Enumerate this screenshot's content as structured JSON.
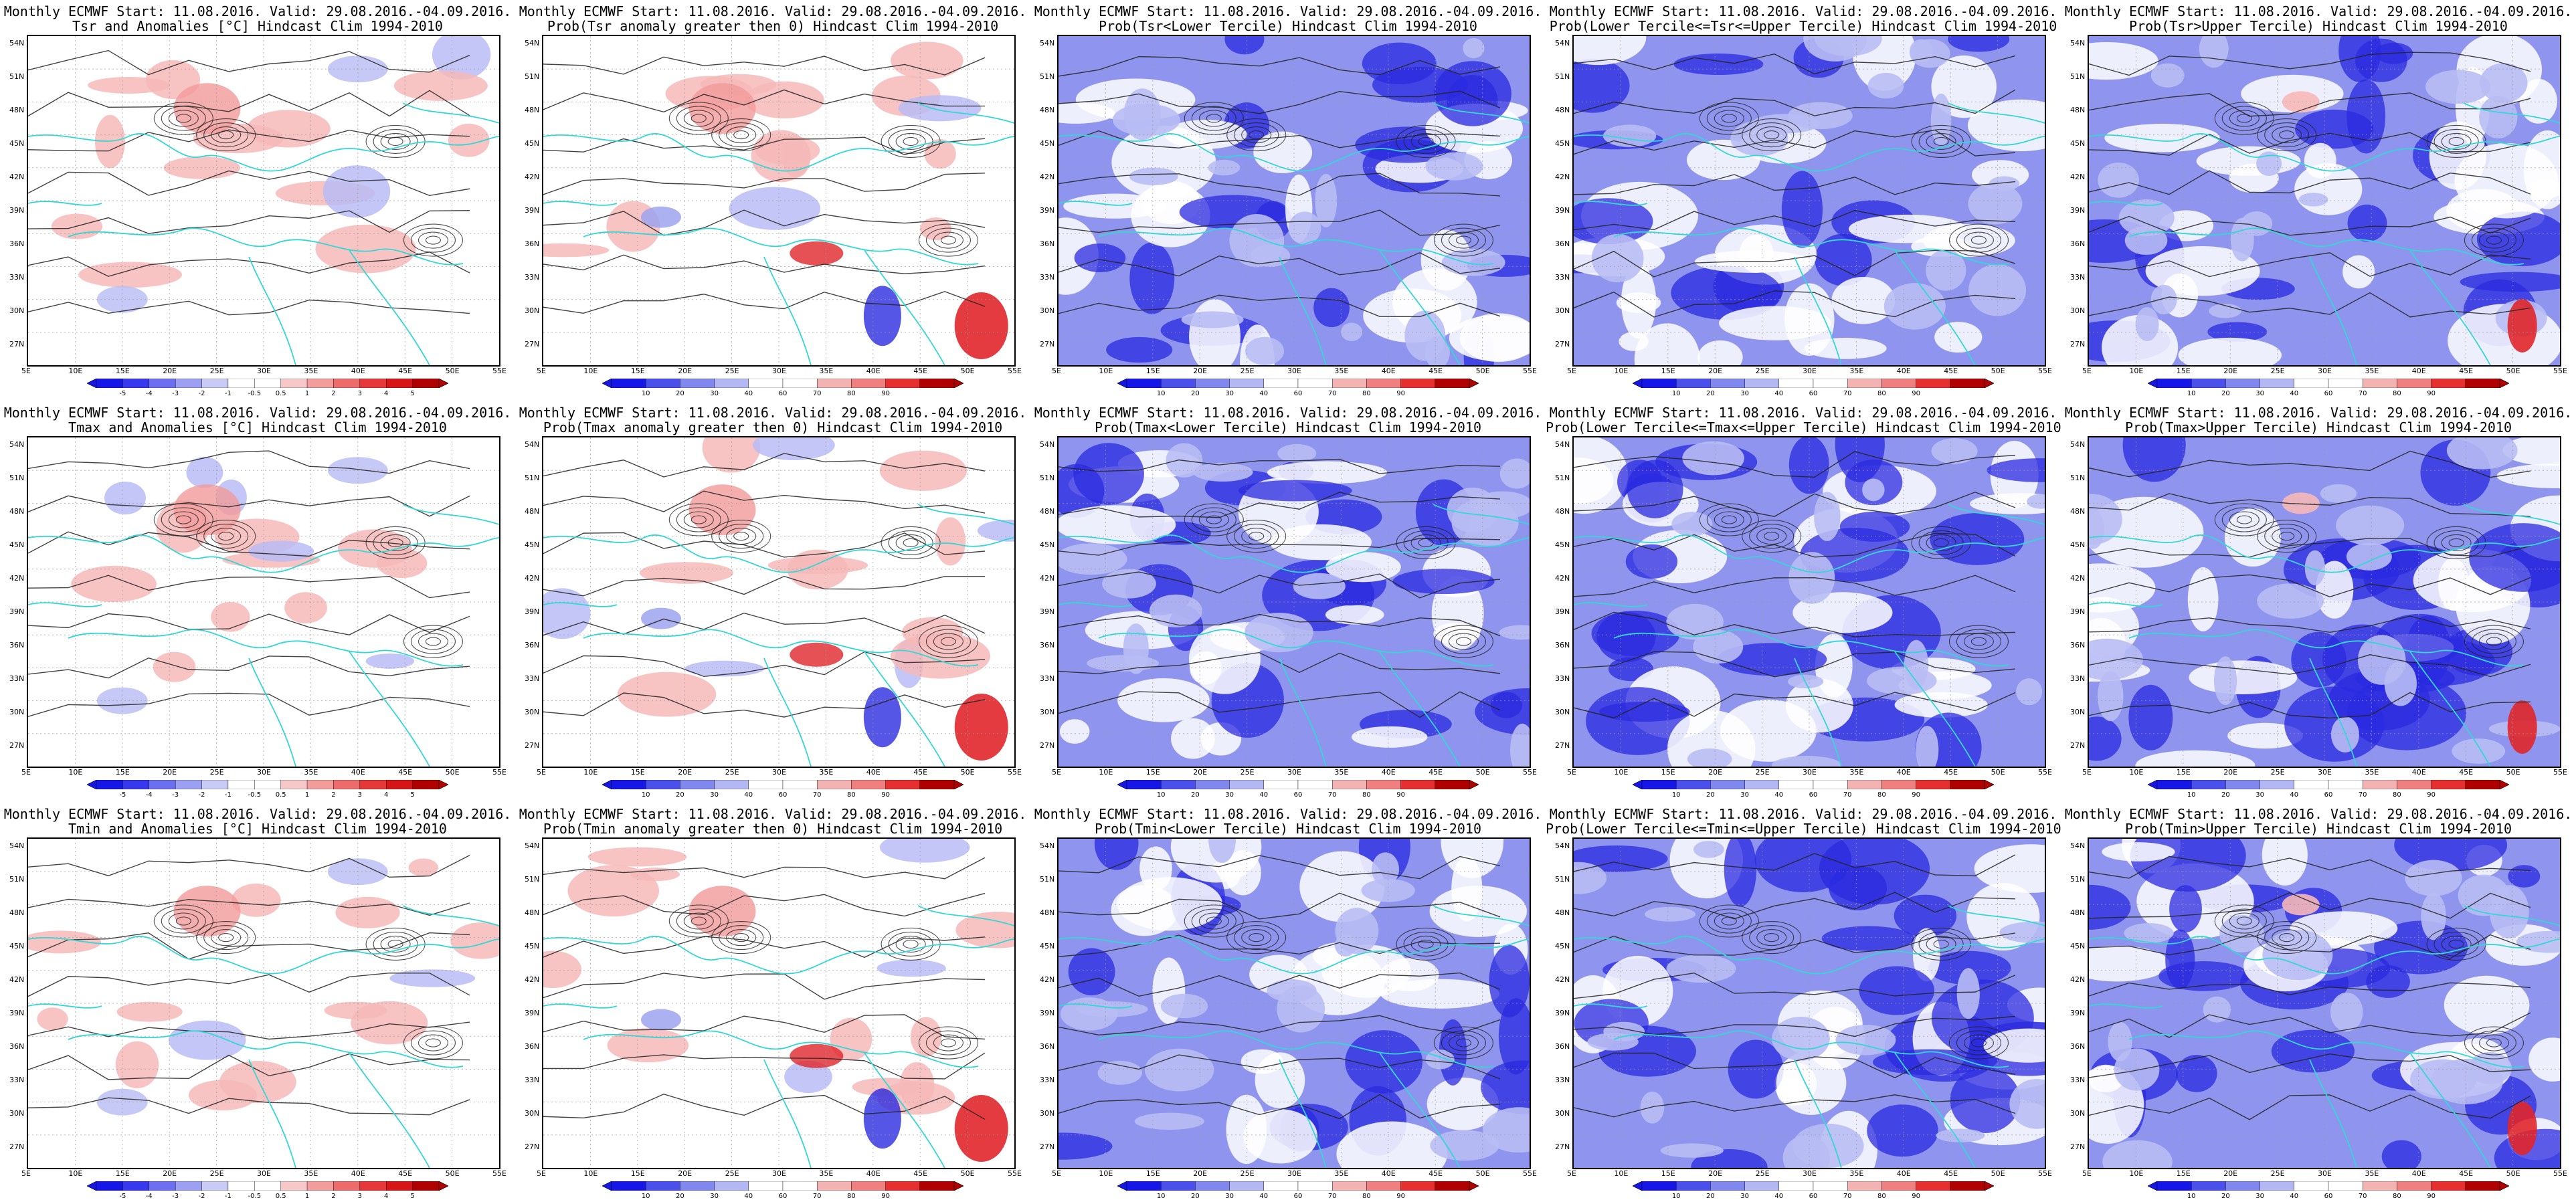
{
  "common": {
    "header": "Monthly ECMWF Start: 11.08.2016. Valid: 29.08.2016.-04.09.2016.",
    "lat_labels": [
      "54N",
      "51N",
      "48N",
      "45N",
      "42N",
      "39N",
      "36N",
      "33N",
      "30N",
      "27N"
    ],
    "lon_labels": [
      "5E",
      "10E",
      "15E",
      "20E",
      "25E",
      "30E",
      "35E",
      "40E",
      "45E",
      "50E",
      "55E"
    ],
    "anomaly_scale": [
      "-5",
      "-4",
      "-3",
      "-2",
      "-1",
      "-0.5",
      "0.5",
      "1",
      "2",
      "3",
      "4",
      "5"
    ],
    "prob_scale": [
      "10",
      "20",
      "30",
      "40",
      "60",
      "70",
      "80",
      "90"
    ],
    "colors": {
      "cold": "#2a2ae0",
      "cold_light": "#b8bcf4",
      "warm": "#e0262a",
      "warm_light": "#f6b8b8",
      "coast": "#35d6d6",
      "contour": "#222222"
    }
  },
  "panels": [
    {
      "id": "tsr-anom",
      "subtitle": "Tsr and Anomalies [°C] Hindcast Clim 1994-2010",
      "scale": "anomaly",
      "style": "anom"
    },
    {
      "id": "tsr-prob-gt0",
      "subtitle": "Prob(Tsr anomaly greater then 0) Hindcast Clim 1994-2010",
      "scale": "prob",
      "style": "probpos"
    },
    {
      "id": "tsr-lower",
      "subtitle": "Prob(Tsr<Lower Tercile) Hindcast Clim 1994-2010",
      "scale": "prob",
      "style": "blue"
    },
    {
      "id": "tsr-middle",
      "subtitle": "Prob(Lower Tercile<=Tsr<=Upper Tercile) Hindcast Clim 1994-2010",
      "scale": "prob",
      "style": "bluemid"
    },
    {
      "id": "tsr-upper",
      "subtitle": "Prob(Tsr>Upper Tercile) Hindcast Clim 1994-2010",
      "scale": "prob",
      "style": "bluered"
    },
    {
      "id": "tmax-anom",
      "subtitle": "Tmax and Anomalies [°C] Hindcast Clim 1994-2010",
      "scale": "anomaly",
      "style": "anom"
    },
    {
      "id": "tmax-prob-gt0",
      "subtitle": "Prob(Tmax anomaly greater then 0) Hindcast Clim 1994-2010",
      "scale": "prob",
      "style": "probpos"
    },
    {
      "id": "tmax-lower",
      "subtitle": "Prob(Tmax<Lower Tercile) Hindcast Clim 1994-2010",
      "scale": "prob",
      "style": "blue"
    },
    {
      "id": "tmax-middle",
      "subtitle": "Prob(Lower Tercile<=Tmax<=Upper Tercile) Hindcast Clim 1994-2010",
      "scale": "prob",
      "style": "bluemid"
    },
    {
      "id": "tmax-upper",
      "subtitle": "Prob(Tmax>Upper Tercile) Hindcast Clim 1994-2010",
      "scale": "prob",
      "style": "bluered"
    },
    {
      "id": "tmin-anom",
      "subtitle": "Tmin and Anomalies [°C] Hindcast Clim 1994-2010",
      "scale": "anomaly",
      "style": "anom"
    },
    {
      "id": "tmin-prob-gt0",
      "subtitle": "Prob(Tmin anomaly greater then 0) Hindcast Clim 1994-2010",
      "scale": "prob",
      "style": "probpos"
    },
    {
      "id": "tmin-lower",
      "subtitle": "Prob(Tmin<Lower Tercile) Hindcast Clim 1994-2010",
      "scale": "prob",
      "style": "blue"
    },
    {
      "id": "tmin-middle",
      "subtitle": "Prob(Lower Tercile<=Tmin<=Upper Tercile) Hindcast Clim 1994-2010",
      "scale": "prob",
      "style": "bluemid"
    },
    {
      "id": "tmin-upper",
      "subtitle": "Prob(Tmin>Upper Tercile) Hindcast Clim 1994-2010",
      "scale": "prob",
      "style": "bluered"
    }
  ]
}
